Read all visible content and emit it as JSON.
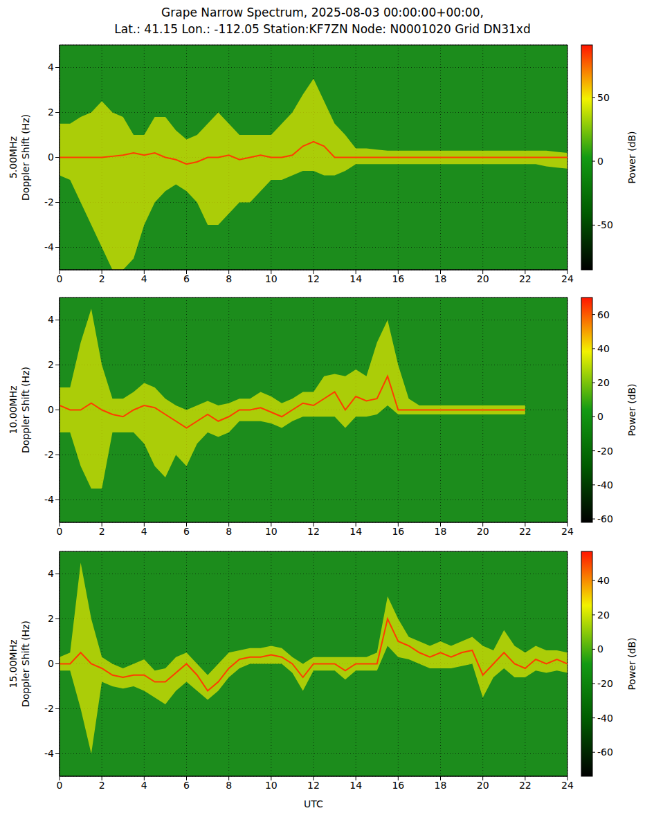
{
  "title": "Grape Narrow Spectrum, 2025-08-03 00:00:00+00:00,",
  "subtitle": "Lat.: 41.15 Lon.: -112.05 Station:KF7ZN Node: N0001020 Grid DN31xd",
  "chart_data": [
    {
      "type": "spectrogram",
      "frequency_label": "5.00MHz",
      "ylabel": "Doppler Shift (Hz)",
      "xlim": [
        0,
        24
      ],
      "xticks": [
        0,
        2,
        4,
        6,
        8,
        10,
        12,
        14,
        16,
        18,
        20,
        22,
        24
      ],
      "ylim": [
        -5,
        5
      ],
      "yticks": [
        -4,
        -2,
        0,
        2,
        4
      ],
      "grid": true,
      "color": "#ff3c00",
      "x": [
        0,
        0.5,
        1,
        1.5,
        2,
        2.5,
        3,
        3.5,
        4,
        4.5,
        5,
        5.5,
        6,
        6.5,
        7,
        7.5,
        8,
        8.5,
        9,
        9.5,
        10,
        10.5,
        11,
        11.5,
        12,
        12.5,
        13,
        13.5,
        14,
        14.5,
        15,
        15.5,
        16,
        16.5,
        17,
        17.5,
        18,
        18.5,
        19,
        19.5,
        20,
        20.5,
        21,
        21.5,
        22,
        22.5,
        23,
        23.5,
        24
      ],
      "values": [
        0,
        0,
        0,
        0,
        0,
        0.05,
        0.1,
        0.2,
        0.1,
        0.2,
        0,
        -0.1,
        -0.3,
        -0.2,
        0,
        0,
        0.1,
        -0.1,
        0,
        0.1,
        0,
        0,
        0.1,
        0.5,
        0.7,
        0.5,
        0,
        0,
        0,
        0,
        0,
        0,
        0,
        0,
        0,
        0,
        0,
        0,
        0,
        0,
        0,
        0,
        0,
        0,
        0,
        0,
        0,
        0,
        0
      ],
      "band_high": [
        1.5,
        1.5,
        1.8,
        2,
        2.5,
        2,
        1.8,
        1,
        1,
        1.8,
        1.8,
        1.2,
        0.8,
        1,
        1.5,
        2,
        1.5,
        1,
        1,
        1,
        1,
        1.5,
        2,
        2.8,
        3.5,
        2.5,
        1.5,
        1,
        0.4,
        0.4,
        0.35,
        0.3,
        0.3,
        0.3,
        0.3,
        0.3,
        0.3,
        0.3,
        0.3,
        0.3,
        0.3,
        0.3,
        0.3,
        0.3,
        0.3,
        0.3,
        0.3,
        0.25,
        0.2
      ],
      "band_low": [
        -0.8,
        -1,
        -2,
        -3,
        -4,
        -5,
        -5,
        -4.5,
        -3,
        -2,
        -1.5,
        -1.2,
        -1.5,
        -2,
        -3,
        -3,
        -2.5,
        -2,
        -2,
        -1.5,
        -1,
        -1,
        -0.8,
        -0.6,
        -0.6,
        -0.8,
        -0.8,
        -0.6,
        -0.3,
        -0.3,
        -0.3,
        -0.3,
        -0.3,
        -0.3,
        -0.3,
        -0.3,
        -0.3,
        -0.3,
        -0.3,
        -0.3,
        -0.3,
        -0.3,
        -0.3,
        -0.3,
        -0.3,
        -0.3,
        -0.4,
        -0.45,
        -0.5
      ],
      "colorbar": {
        "label": "Power (dB)",
        "range": [
          -85,
          91
        ],
        "ticks": [
          -50,
          0,
          50
        ]
      }
    },
    {
      "type": "spectrogram",
      "frequency_label": "10.00MHz",
      "ylabel": "Doppler Shift (Hz)",
      "xlim": [
        0,
        24
      ],
      "xticks": [
        0,
        2,
        4,
        6,
        8,
        10,
        12,
        14,
        16,
        18,
        20,
        22,
        24
      ],
      "ylim": [
        -5,
        5
      ],
      "yticks": [
        -4,
        -2,
        0,
        2,
        4
      ],
      "grid": true,
      "color": "#ff3c00",
      "x": [
        0,
        0.5,
        1,
        1.5,
        2,
        2.5,
        3,
        3.5,
        4,
        4.5,
        5,
        5.5,
        6,
        6.5,
        7,
        7.5,
        8,
        8.5,
        9,
        9.5,
        10,
        10.5,
        11,
        11.5,
        12,
        12.5,
        13,
        13.5,
        14,
        14.5,
        15,
        15.5,
        16,
        16.5,
        17,
        17.5,
        18,
        18.5,
        19,
        19.5,
        20,
        20.5,
        21,
        21.5,
        22,
        22.5,
        23,
        23.5,
        24
      ],
      "values": [
        0.2,
        0,
        0,
        0.3,
        0,
        -0.2,
        -0.3,
        0,
        0.2,
        0.1,
        -0.2,
        -0.5,
        -0.8,
        -0.5,
        -0.2,
        -0.5,
        -0.3,
        0,
        0,
        0.1,
        -0.1,
        -0.3,
        0,
        0.3,
        0.2,
        0.5,
        0.8,
        0,
        0.6,
        0.4,
        0.5,
        1.5,
        0,
        0,
        0,
        0,
        0,
        0,
        0,
        0,
        0,
        0,
        0,
        0,
        0,
        null,
        null,
        null,
        null
      ],
      "band_high": [
        1,
        1,
        3,
        4.5,
        2,
        0.5,
        0.5,
        0.8,
        1.2,
        1,
        0.5,
        0.2,
        0,
        0.2,
        0.4,
        0.2,
        0.3,
        0.5,
        0.5,
        0.8,
        0.6,
        0.3,
        0.5,
        0.8,
        0.8,
        1.5,
        1.6,
        1.5,
        1.8,
        1.5,
        3,
        4,
        2,
        0.5,
        0.2,
        0.2,
        0.2,
        0.2,
        0.2,
        0.2,
        0.2,
        0.2,
        0.2,
        0.2,
        0.2,
        null,
        null,
        null,
        null
      ],
      "band_low": [
        -1,
        -1,
        -2.5,
        -3.5,
        -3.5,
        -1,
        -1,
        -1,
        -1.5,
        -2.5,
        -3,
        -2,
        -2.5,
        -1.5,
        -1,
        -1.2,
        -1,
        -0.5,
        -0.5,
        -0.5,
        -0.6,
        -0.8,
        -0.5,
        -0.3,
        -0.3,
        -0.3,
        -0.3,
        -0.8,
        -0.3,
        -0.3,
        -0.2,
        0.2,
        -0.2,
        -0.2,
        -0.2,
        -0.2,
        -0.2,
        -0.2,
        -0.2,
        -0.2,
        -0.2,
        -0.2,
        -0.2,
        -0.2,
        -0.2,
        null,
        null,
        null,
        null
      ],
      "colorbar": {
        "label": "Power (dB)",
        "range": [
          -62,
          70
        ],
        "ticks": [
          -60,
          -40,
          -20,
          0,
          20,
          40,
          60
        ]
      }
    },
    {
      "type": "spectrogram",
      "frequency_label": "15.00MHz",
      "ylabel": "Doppler Shift (Hz)",
      "xlabel": "UTC",
      "xlim": [
        0,
        24
      ],
      "xticks": [
        0,
        2,
        4,
        6,
        8,
        10,
        12,
        14,
        16,
        18,
        20,
        22,
        24
      ],
      "ylim": [
        -5,
        5
      ],
      "yticks": [
        -4,
        -2,
        0,
        2,
        4
      ],
      "grid": true,
      "color": "#ff3c00",
      "x": [
        0,
        0.5,
        1,
        1.5,
        2,
        2.5,
        3,
        3.5,
        4,
        4.5,
        5,
        5.5,
        6,
        6.5,
        7,
        7.5,
        8,
        8.5,
        9,
        9.5,
        10,
        10.5,
        11,
        11.5,
        12,
        12.5,
        13,
        13.5,
        14,
        14.5,
        15,
        15.5,
        16,
        16.5,
        17,
        17.5,
        18,
        18.5,
        19,
        19.5,
        20,
        20.5,
        21,
        21.5,
        22,
        22.5,
        23,
        23.5,
        24
      ],
      "values": [
        0,
        0,
        0.5,
        0,
        -0.2,
        -0.5,
        -0.6,
        -0.5,
        -0.5,
        -0.8,
        -0.8,
        -0.4,
        0,
        -0.5,
        -1.2,
        -0.8,
        -0.2,
        0.2,
        0.3,
        0.3,
        0.4,
        0.3,
        0,
        -0.6,
        0,
        0,
        0,
        -0.3,
        0,
        0,
        0,
        2,
        1,
        0.8,
        0.5,
        0.3,
        0.5,
        0.3,
        0.5,
        0.6,
        -0.5,
        0,
        0.5,
        0,
        -0.2,
        0.2,
        0,
        0.2,
        0
      ],
      "band_high": [
        0.3,
        0.5,
        4.5,
        2,
        0.3,
        0,
        -0.2,
        0,
        0.2,
        -0.3,
        -0.2,
        0.3,
        0.5,
        0,
        -0.5,
        0,
        0.5,
        0.6,
        0.7,
        0.7,
        0.8,
        0.7,
        0.3,
        0,
        0.3,
        0.3,
        0.3,
        0.3,
        0.3,
        0.3,
        0.5,
        3,
        2,
        1.2,
        1,
        0.8,
        1,
        0.8,
        1,
        1.2,
        0.8,
        0.6,
        1.5,
        0.8,
        0.5,
        0.8,
        0.6,
        0.6,
        0.5
      ],
      "band_low": [
        -0.3,
        -0.3,
        -2,
        -4,
        -0.8,
        -1,
        -1.1,
        -1,
        -1.2,
        -1.5,
        -1.8,
        -1.2,
        -0.8,
        -1.2,
        -1.6,
        -1.2,
        -0.6,
        -0.2,
        0,
        0,
        0,
        0,
        -0.4,
        -1.2,
        -0.3,
        -0.3,
        -0.3,
        -0.7,
        -0.3,
        -0.3,
        -0.3,
        0.8,
        0.3,
        0.2,
        0,
        -0.2,
        -0.2,
        -0.2,
        -0.1,
        0,
        -1.5,
        -0.6,
        -0.2,
        -0.6,
        -0.6,
        -0.3,
        -0.4,
        -0.3,
        -0.4
      ],
      "colorbar": {
        "label": "Power (dB)",
        "range": [
          -74,
          57
        ],
        "ticks": [
          -60,
          -40,
          -20,
          0,
          20,
          40
        ]
      }
    }
  ]
}
